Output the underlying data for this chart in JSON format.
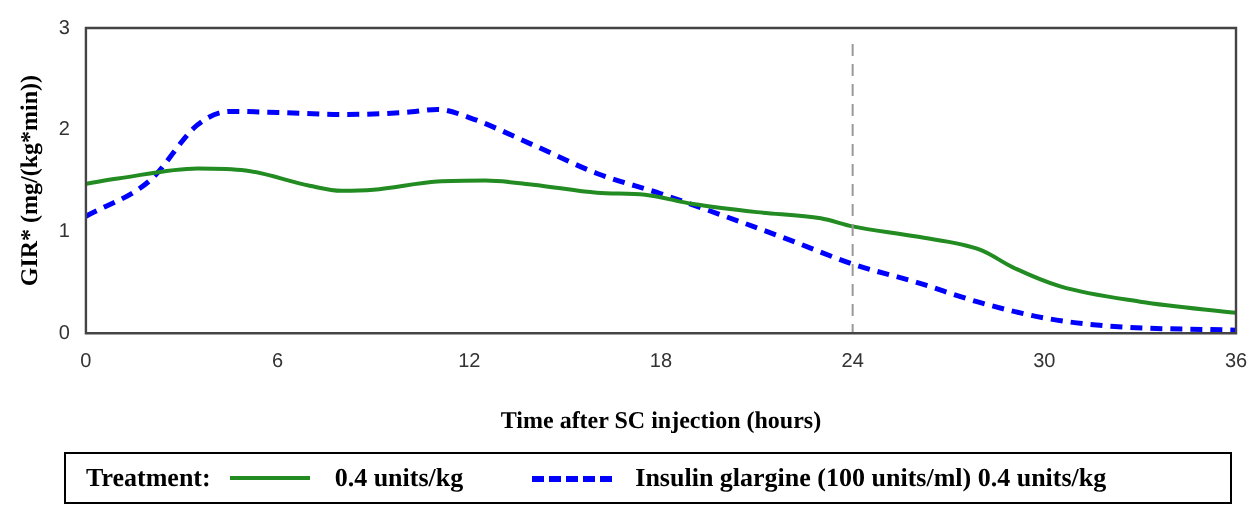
{
  "chart_data": {
    "type": "line",
    "xlabel": "Time after SC injection (hours)",
    "ylabel": "GIR* (mg/(kg*min))",
    "legend_title": "Treatment:",
    "legend": "bottom",
    "grid": false,
    "marker": "none",
    "xlim": [
      0,
      36
    ],
    "xticks": [
      0,
      6,
      12,
      18,
      24,
      30,
      36
    ],
    "ylim": [
      0,
      3
    ],
    "yticks": [
      0,
      1,
      2,
      3
    ],
    "ref_lines": [
      {
        "axis": "x",
        "value": 24,
        "color": "#999999",
        "line_style": "dashed"
      }
    ],
    "series": [
      {
        "name": "0.4 units/kg",
        "color": "#228b22",
        "line_style": "solid",
        "x": [
          0,
          1,
          3.5,
          5,
          7,
          8,
          9,
          11,
          12.5,
          14,
          16,
          17.5,
          19,
          21,
          23,
          24,
          26,
          28,
          29,
          30.5,
          33,
          36
        ],
        "values": [
          1.47,
          1.52,
          1.62,
          1.6,
          1.45,
          1.4,
          1.41,
          1.49,
          1.5,
          1.46,
          1.38,
          1.36,
          1.27,
          1.19,
          1.13,
          1.05,
          0.95,
          0.82,
          0.65,
          0.46,
          0.31,
          0.2
        ]
      },
      {
        "name": "Insulin glargine (100 units/ml)  0.4 units/kg",
        "color": "#0000ff",
        "line_style": "dashed",
        "x": [
          0,
          2,
          3.5,
          4.5,
          6,
          8,
          10,
          11,
          12,
          14,
          16,
          18,
          20,
          22,
          24,
          26,
          28,
          30,
          32,
          36
        ],
        "values": [
          1.15,
          1.5,
          2.05,
          2.18,
          2.17,
          2.15,
          2.17,
          2.2,
          2.12,
          1.85,
          1.57,
          1.37,
          1.15,
          0.92,
          0.68,
          0.5,
          0.3,
          0.15,
          0.07,
          0.03
        ]
      }
    ]
  }
}
